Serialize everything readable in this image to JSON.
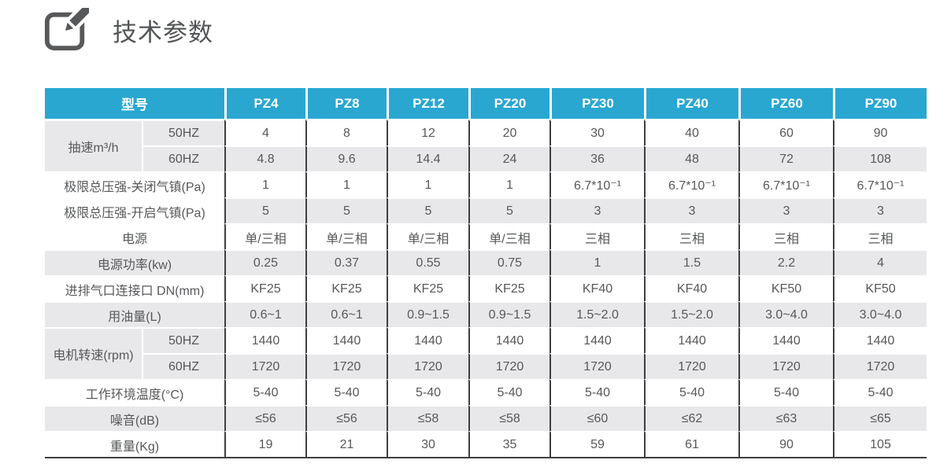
{
  "page": {
    "title": "技术参数",
    "icon": "edit-pencil-icon"
  },
  "colors": {
    "accent_cyan": "#29a7d1",
    "row_shade_gray": "#e8e8ea",
    "grid_line_dark": "#3f3f41",
    "body_text": "#57585a",
    "header_text": "#ffffff"
  },
  "table": {
    "model_header_label": "型号",
    "models": [
      "PZ4",
      "PZ8",
      "PZ12",
      "PZ20",
      "PZ30",
      "PZ40",
      "PZ60",
      "PZ90"
    ],
    "rows": [
      {
        "group": "抽速m³/h",
        "group_rowspan": 2,
        "sub": "50HZ",
        "shaded": false,
        "values": [
          "4",
          "8",
          "12",
          "20",
          "30",
          "40",
          "60",
          "90"
        ]
      },
      {
        "sub": "60HZ",
        "shaded": true,
        "values": [
          "4.8",
          "9.6",
          "14.4",
          "24",
          "36",
          "48",
          "72",
          "108"
        ]
      },
      {
        "label": "极限总压强-关闭气镇(Pa)",
        "label_shaded": false,
        "shaded": false,
        "values": [
          "1",
          "1",
          "1",
          "1",
          "6.7*10⁻¹",
          "6.7*10⁻¹",
          "6.7*10⁻¹",
          "6.7*10⁻¹"
        ]
      },
      {
        "label": "极限总压强-开启气镇(Pa)",
        "label_shaded": false,
        "shaded": true,
        "values": [
          "5",
          "5",
          "5",
          "5",
          "3",
          "3",
          "3",
          "3"
        ]
      },
      {
        "label": "电源",
        "label_shaded": false,
        "shaded": false,
        "values": [
          "单/三相",
          "单/三相",
          "单/三相",
          "单/三相",
          "三相",
          "三相",
          "三相",
          "三相"
        ]
      },
      {
        "label": "电源功率(kw)",
        "label_shaded": true,
        "shaded": true,
        "values": [
          "0.25",
          "0.37",
          "0.55",
          "0.75",
          "1",
          "1.5",
          "2.2",
          "4"
        ]
      },
      {
        "label": "进排气口连接口 DN(mm)",
        "label_shaded": false,
        "shaded": false,
        "values": [
          "KF25",
          "KF25",
          "KF25",
          "KF25",
          "KF40",
          "KF40",
          "KF50",
          "KF50"
        ]
      },
      {
        "label": "用油量(L)",
        "label_shaded": true,
        "shaded": true,
        "values": [
          "0.6~1",
          "0.6~1",
          "0.9~1.5",
          "0.9~1.5",
          "1.5~2.0",
          "1.5~2.0",
          "3.0~4.0",
          "3.0~4.0"
        ]
      },
      {
        "group": "电机转速(rpm)",
        "group_rowspan": 2,
        "sub": "50HZ",
        "shaded": false,
        "values": [
          "1440",
          "1440",
          "1440",
          "1440",
          "1440",
          "1440",
          "1440",
          "1440"
        ]
      },
      {
        "sub": "60HZ",
        "shaded": true,
        "values": [
          "1720",
          "1720",
          "1720",
          "1720",
          "1720",
          "1720",
          "1720",
          "1720"
        ]
      },
      {
        "label": "工作环境温度(°C)",
        "label_shaded": false,
        "shaded": false,
        "values": [
          "5-40",
          "5-40",
          "5-40",
          "5-40",
          "5-40",
          "5-40",
          "5-40",
          "5-40"
        ]
      },
      {
        "label": "噪音(dB)",
        "label_shaded": true,
        "shaded": true,
        "values": [
          "≤56",
          "≤56",
          "≤58",
          "≤58",
          "≤60",
          "≤62",
          "≤63",
          "≤65"
        ]
      },
      {
        "label": "重量(Kg)",
        "label_shaded": false,
        "shaded": false,
        "values": [
          "19",
          "21",
          "30",
          "35",
          "59",
          "61",
          "90",
          "105"
        ]
      }
    ]
  }
}
